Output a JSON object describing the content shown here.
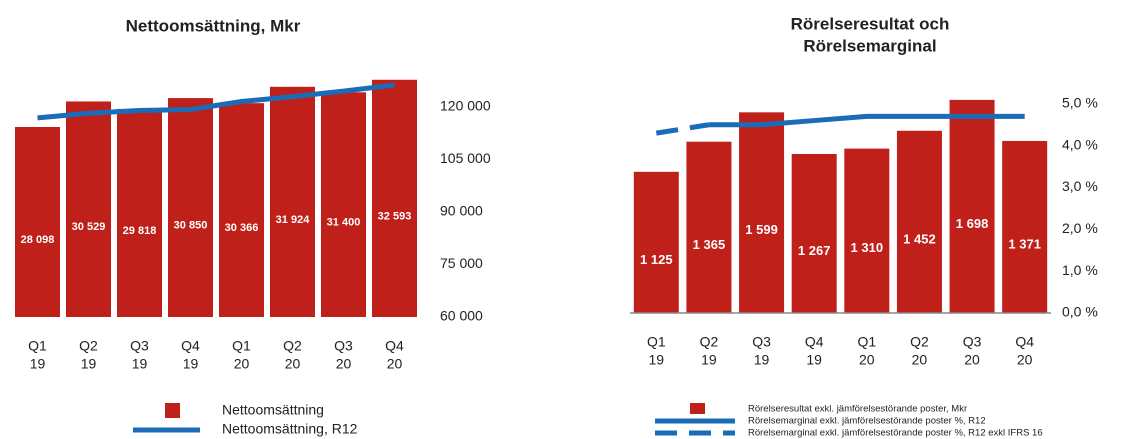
{
  "chart_data": [
    {
      "type": "bar",
      "title": [
        "Nettoomsättning, Mkr"
      ],
      "categories": [
        [
          "Q1",
          "19"
        ],
        [
          "Q2",
          "19"
        ],
        [
          "Q3",
          "19"
        ],
        [
          "Q4",
          "19"
        ],
        [
          "Q1",
          "20"
        ],
        [
          "Q2",
          "20"
        ],
        [
          "Q3",
          "20"
        ],
        [
          "Q4",
          "20"
        ]
      ],
      "ylim": [
        10000,
        35000
      ],
      "y2lim": [
        60000,
        135000
      ],
      "y2ticks": [
        {
          "value": 60000,
          "label": "60 000"
        },
        {
          "value": 75000,
          "label": "75 000"
        },
        {
          "value": 90000,
          "label": "90 000"
        },
        {
          "value": 105000,
          "label": "105 000"
        },
        {
          "value": 120000,
          "label": "120 000"
        }
      ],
      "series": [
        {
          "name": "Nettoomsättning",
          "color": "#c0201a",
          "kind": "bar",
          "values": [
            28098,
            30529,
            29818,
            30850,
            30366,
            31924,
            31400,
            32593
          ],
          "value_labels": [
            "28 098",
            "30 529",
            "29 818",
            "30 850",
            "30 366",
            "31 924",
            "31 400",
            "32 593"
          ]
        },
        {
          "name": "Nettoomsättning, R12",
          "color": "#1a6bb8",
          "kind": "line",
          "axis": "y2",
          "values": [
            116900,
            118200,
            119000,
            119295,
            121563,
            122958,
            124540,
            126283
          ]
        }
      ]
    },
    {
      "type": "bar",
      "title": [
        "Rörelseresultat och",
        "Rörelsemarginal"
      ],
      "categories": [
        [
          "Q1",
          "19"
        ],
        [
          "Q2",
          "19"
        ],
        [
          "Q3",
          "19"
        ],
        [
          "Q4",
          "19"
        ],
        [
          "Q1",
          "20"
        ],
        [
          "Q2",
          "20"
        ],
        [
          "Q3",
          "20"
        ],
        [
          "Q4",
          "20"
        ]
      ],
      "ylim": [
        0,
        2000
      ],
      "y2lim": [
        0,
        6
      ],
      "y2ticks": [
        {
          "value": 0,
          "label": "0,0 %"
        },
        {
          "value": 1,
          "label": "1,0 %"
        },
        {
          "value": 2,
          "label": "2,0 %"
        },
        {
          "value": 3,
          "label": "3,0 %"
        },
        {
          "value": 4,
          "label": "4,0 %"
        },
        {
          "value": 5,
          "label": "5,0 %"
        }
      ],
      "baseline": true,
      "series": [
        {
          "name": "Rörelseresultat exkl. jämförelsestörande poster, Mkr",
          "color": "#c0201a",
          "kind": "bar",
          "values": [
            1125,
            1365,
            1599,
            1267,
            1310,
            1452,
            1698,
            1371
          ],
          "value_labels": [
            "1 125",
            "1 365",
            "1 599",
            "1 267",
            "1 310",
            "1 452",
            "1 698",
            "1 371"
          ]
        },
        {
          "name": "Rörelsemarginal exkl. jämförelsestörande poster %, R12",
          "color": "#1a6bb8",
          "kind": "line",
          "axis": "y2",
          "values": [
            null,
            4.5,
            4.5,
            4.6,
            4.7,
            4.7,
            4.7,
            4.7
          ]
        },
        {
          "name": "Rörelsemarginal exkl. jämförelsestörande poster %, R12 exkl IFRS 16",
          "color": "#1a6bb8",
          "kind": "line",
          "axis": "y2",
          "dashed": true,
          "values": [
            4.3,
            4.5,
            null,
            null,
            null,
            null,
            null,
            null
          ]
        }
      ]
    }
  ]
}
